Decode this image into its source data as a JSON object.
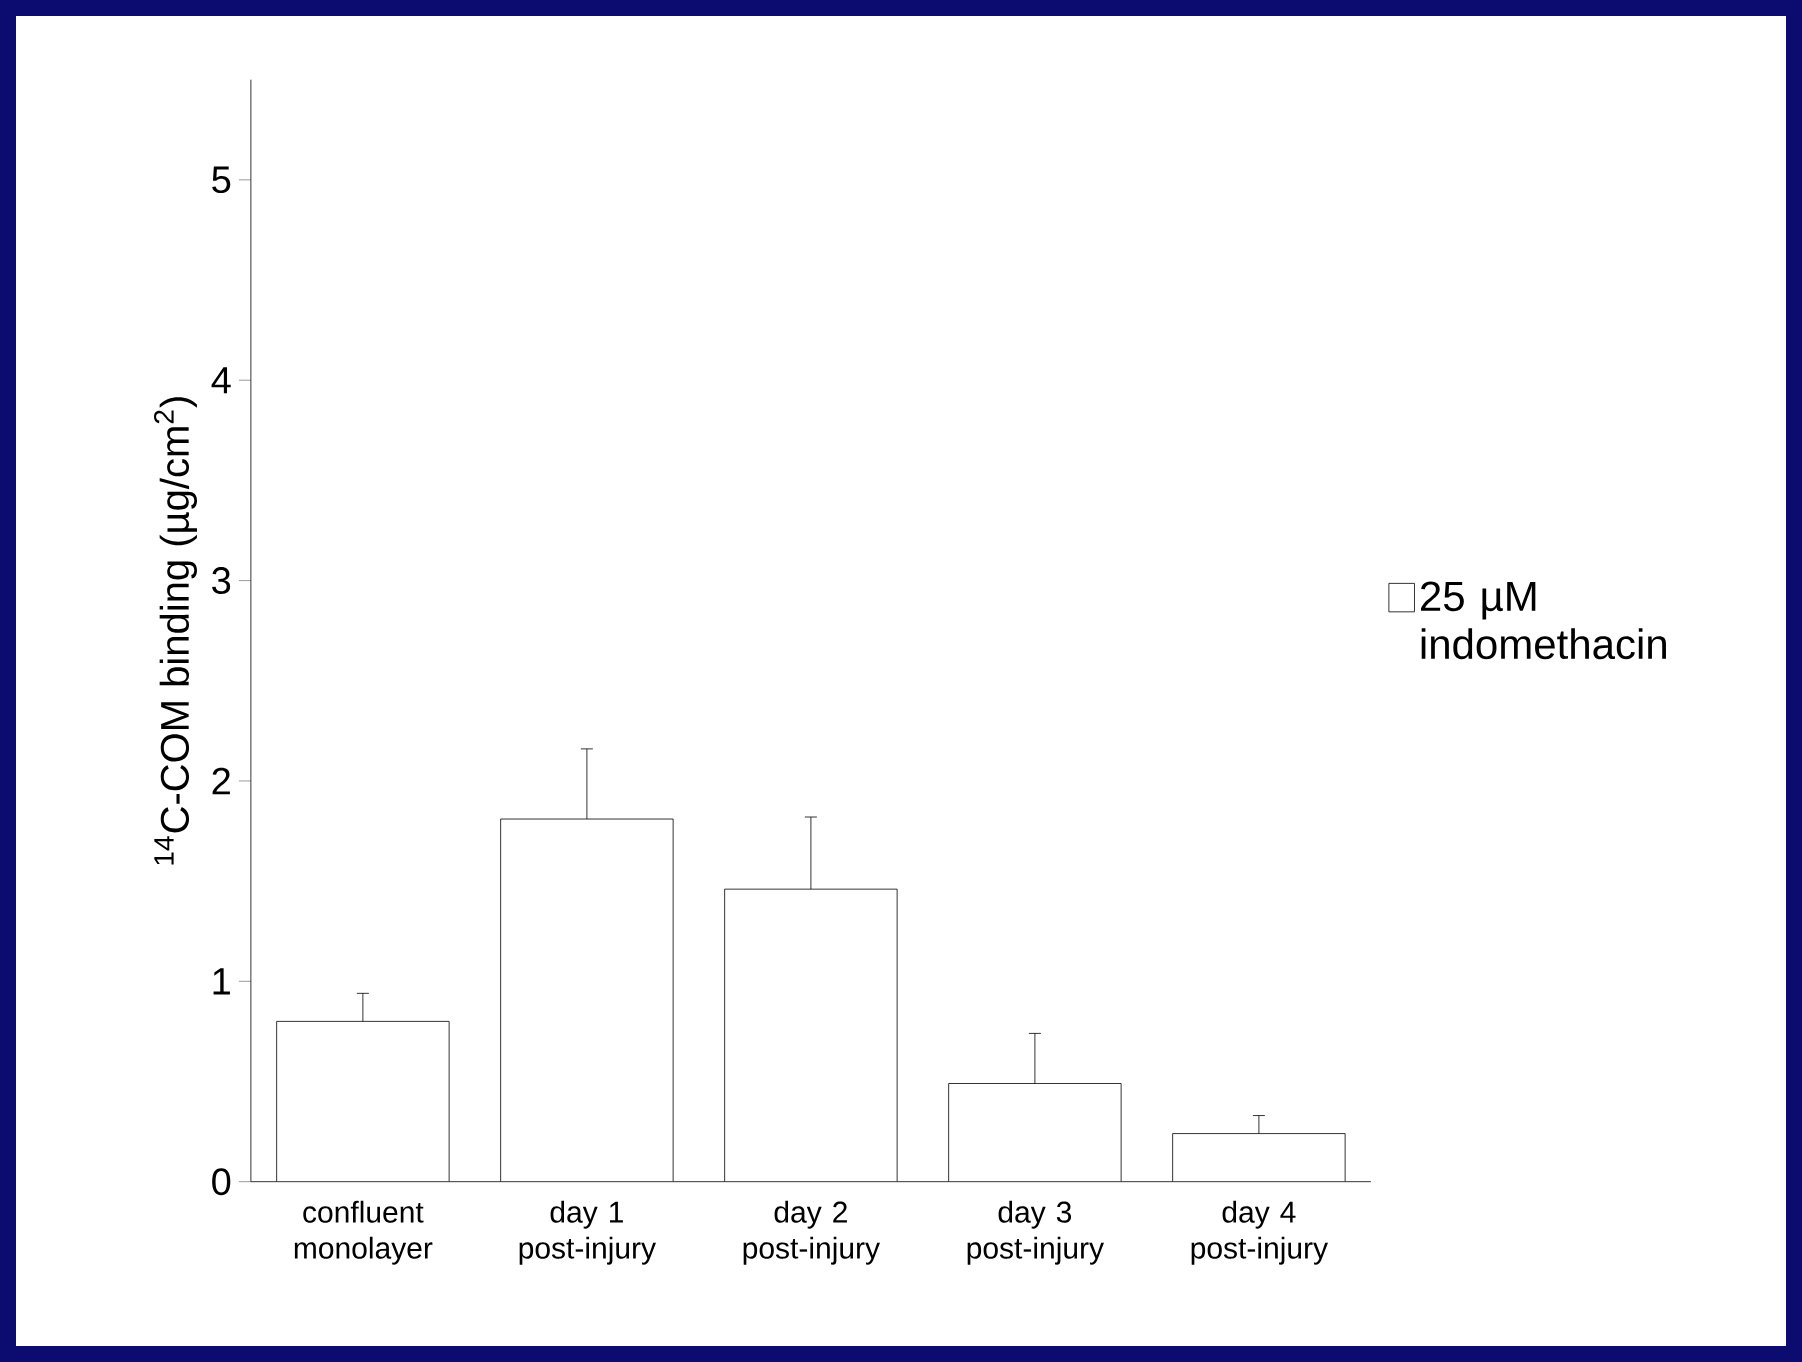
{
  "chart_data": {
    "type": "bar",
    "ylabel": "$^{14}$C-COM binding (µg/cm$^{2}$)",
    "categories": [
      "confluent monolayer",
      "day 1 post-injury",
      "day 2 post-injury",
      "day 3 post-injury",
      "day 4 post-injury"
    ],
    "series": [
      {
        "name": "25 µM indomethacin",
        "color": "#ffffff",
        "values": [
          0.8,
          1.81,
          1.46,
          0.49,
          0.24
        ],
        "errors": [
          0.14,
          0.35,
          0.36,
          0.25,
          0.09
        ]
      }
    ],
    "ylim": [
      0,
      5.5
    ],
    "yticks": [
      0,
      1,
      2,
      3,
      4,
      5
    ],
    "grid": false,
    "legend": "right"
  }
}
